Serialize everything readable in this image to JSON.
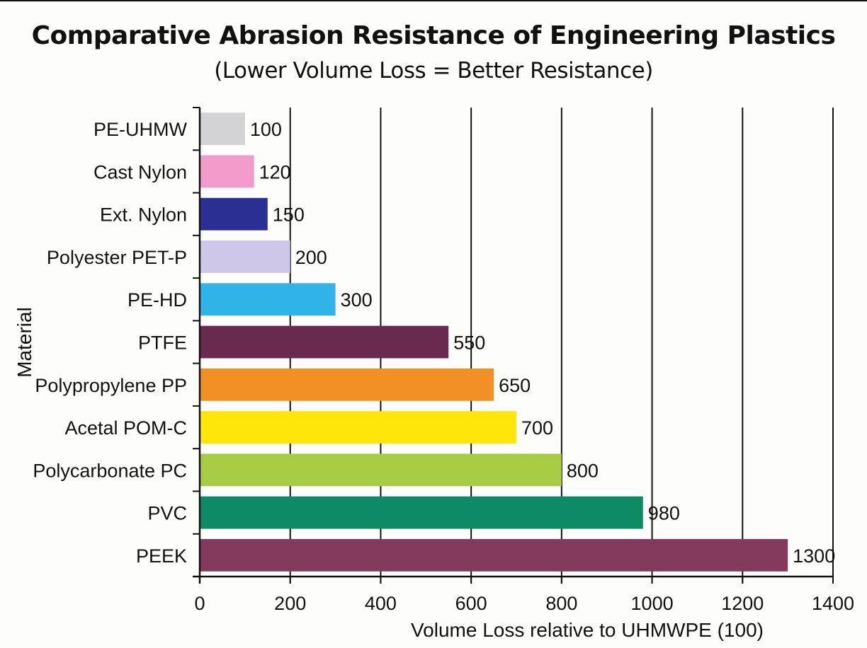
{
  "chart_data": {
    "type": "bar",
    "orientation": "horizontal",
    "title": "Comparative Abrasion Resistance of Engineering Plastics",
    "subtitle": "(Lower Volume Loss = Better Resistance)",
    "xlabel": "Volume Loss relative to UHMWPE (100)",
    "ylabel": "Material",
    "xlim": [
      0,
      1400
    ],
    "xticks": [
      0,
      200,
      400,
      600,
      800,
      1000,
      1200,
      1400
    ],
    "grid": "vertical",
    "categories": [
      "PE-UHMW",
      "Cast Nylon",
      "Ext. Nylon",
      "Polyester PET-P",
      "PE-HD",
      "PTFE",
      "Polypropylene PP",
      "Acetal POM-C",
      "Polycarbonate PC",
      "PVC",
      "PEEK"
    ],
    "values": [
      100,
      120,
      150,
      200,
      300,
      550,
      650,
      700,
      800,
      980,
      1300
    ],
    "colors": [
      "#d3d3d5",
      "#f29ac9",
      "#2b2e93",
      "#cdc6e6",
      "#2fb3e8",
      "#6a2a4f",
      "#f28f25",
      "#ffe60a",
      "#a5cc42",
      "#0d8a63",
      "#843a5c"
    ],
    "data_labels": [
      "100",
      "120",
      "150",
      "200",
      "300",
      "550",
      "650",
      "700",
      "800",
      "980",
      "1300"
    ]
  }
}
